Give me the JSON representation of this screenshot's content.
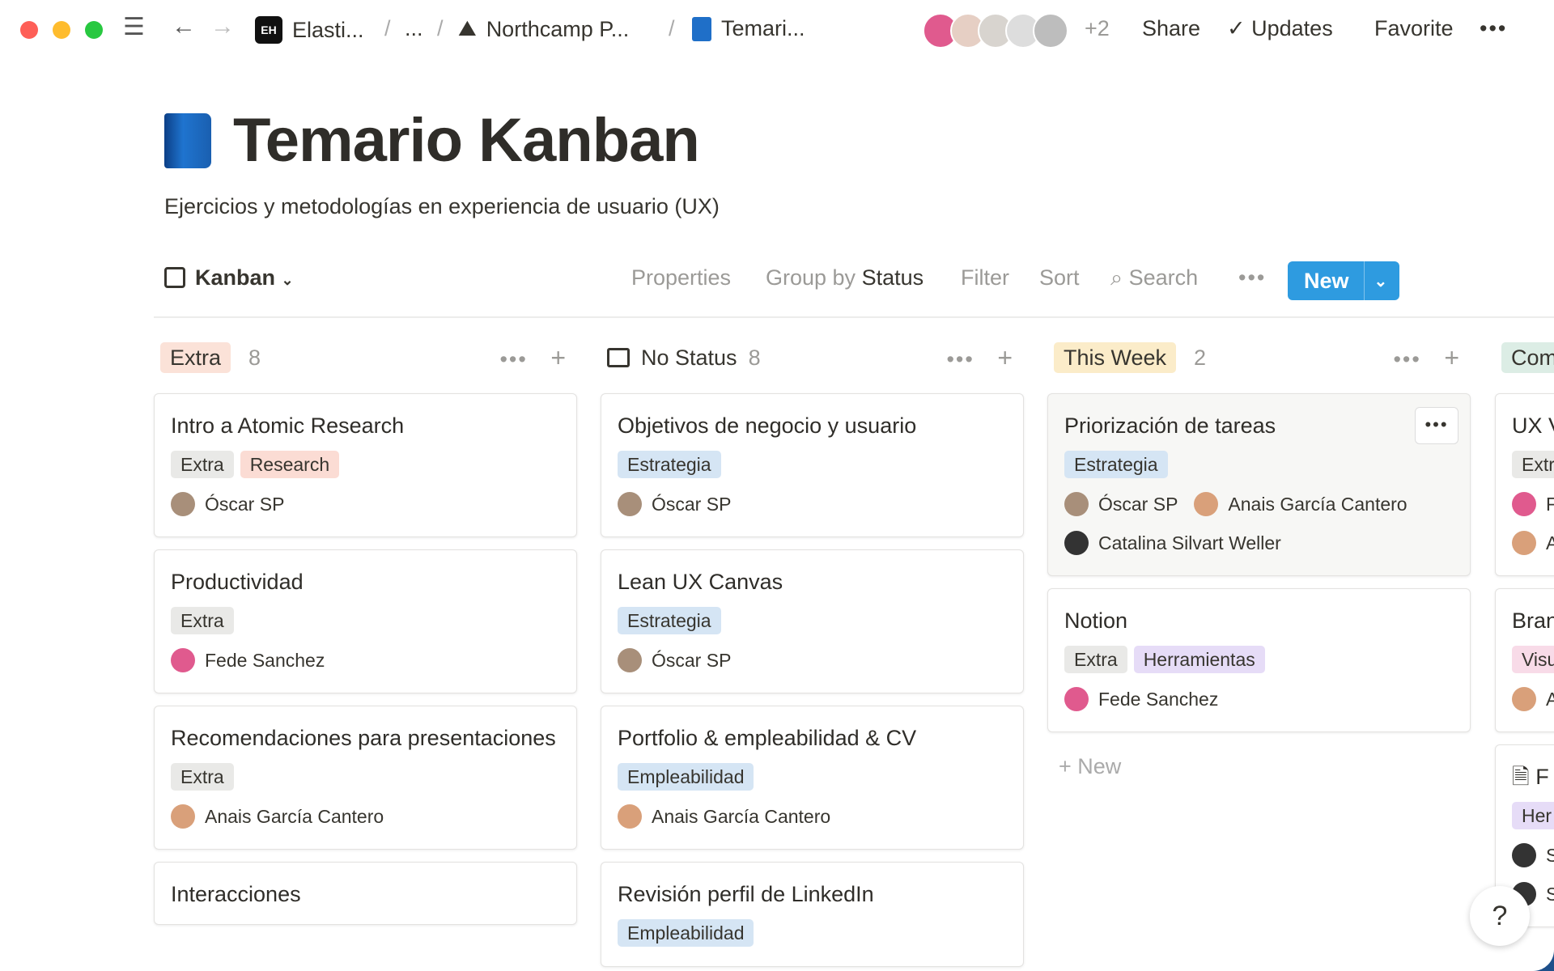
{
  "topbar": {
    "breadcrumbs": [
      {
        "label": "Elasti...",
        "icon": "EH"
      },
      {
        "label": "..."
      },
      {
        "label": "Northcamp P...",
        "icon": "mountain-icon"
      },
      {
        "label": "Temari...",
        "icon": "book-icon"
      }
    ],
    "extra_users": "+2",
    "share": "Share",
    "updates": "Updates",
    "favorite": "Favorite",
    "more": "•••"
  },
  "page": {
    "title": "Temario Kanban",
    "subtitle": "Ejercicios y metodologías en experiencia de usuario (UX)"
  },
  "toolbar": {
    "view": "Kanban",
    "properties": "Properties",
    "group_by": "Group by",
    "group_value": "Status",
    "filter": "Filter",
    "sort": "Sort",
    "search": "Search",
    "more": "•••",
    "new": "New"
  },
  "colors": {
    "accent": "#2e9be0"
  },
  "columns": [
    {
      "name": "Extra",
      "count": "8",
      "color": "#fbe2d8",
      "cards": [
        {
          "title": "Intro a Atomic Research",
          "tags": [
            {
              "l": "Extra",
              "c": "#e9e9e7"
            },
            {
              "l": "Research",
              "c": "#fbdcd4"
            }
          ],
          "people": [
            "Óscar SP"
          ]
        },
        {
          "title": "Productividad",
          "tags": [
            {
              "l": "Extra",
              "c": "#e9e9e7"
            }
          ],
          "people": [
            "Fede Sanchez"
          ]
        },
        {
          "title": "Recomendaciones para presentaciones",
          "tags": [
            {
              "l": "Extra",
              "c": "#e9e9e7"
            }
          ],
          "people": [
            "Anais García Cantero"
          ]
        },
        {
          "title": "Interacciones",
          "tags": [],
          "people": []
        }
      ]
    },
    {
      "name": "No Status",
      "count": "8",
      "color": "",
      "cards": [
        {
          "title": "Objetivos de negocio y usuario",
          "tags": [
            {
              "l": "Estrategia",
              "c": "#d5e5f4"
            }
          ],
          "people": [
            "Óscar SP"
          ]
        },
        {
          "title": "Lean UX Canvas",
          "tags": [
            {
              "l": "Estrategia",
              "c": "#d5e5f4"
            }
          ],
          "people": [
            "Óscar SP"
          ]
        },
        {
          "title": "Portfolio & empleabilidad & CV",
          "tags": [
            {
              "l": "Empleabilidad",
              "c": "#d5e5f4"
            }
          ],
          "people": [
            "Anais García Cantero"
          ]
        },
        {
          "title": "Revisión perfil de LinkedIn",
          "tags": [
            {
              "l": "Empleabilidad",
              "c": "#d5e5f4"
            }
          ],
          "people": []
        }
      ]
    },
    {
      "name": "This Week",
      "count": "2",
      "color": "#fbecc9",
      "cards": [
        {
          "title": "Priorización de tareas",
          "tags": [
            {
              "l": "Estrategia",
              "c": "#d5e5f4"
            }
          ],
          "people": [
            "Óscar SP",
            "Anais García Cantero",
            "Catalina Silvart Weller"
          ]
        },
        {
          "title": "Notion",
          "tags": [
            {
              "l": "Extra",
              "c": "#e9e9e7"
            },
            {
              "l": "Herramientas",
              "c": "#e6dcf7"
            }
          ],
          "people": [
            "Fede Sanchez"
          ]
        }
      ],
      "add": "New"
    },
    {
      "name": "Com",
      "count": "",
      "color": "#dcede5",
      "cards": [
        {
          "title": "UX V",
          "tags": [
            {
              "l": "Extr",
              "c": "#e9e9e7"
            }
          ],
          "people": [
            "F",
            "A"
          ]
        },
        {
          "title": "Bran",
          "tags": [
            {
              "l": "Visu",
              "c": "#f8dbe8"
            }
          ],
          "people": [
            "A"
          ]
        },
        {
          "title": "F",
          "tags": [
            {
              "l": "Her",
              "c": "#e6dcf7"
            }
          ],
          "people": [
            "S",
            "S"
          ]
        }
      ]
    }
  ],
  "help": "?"
}
